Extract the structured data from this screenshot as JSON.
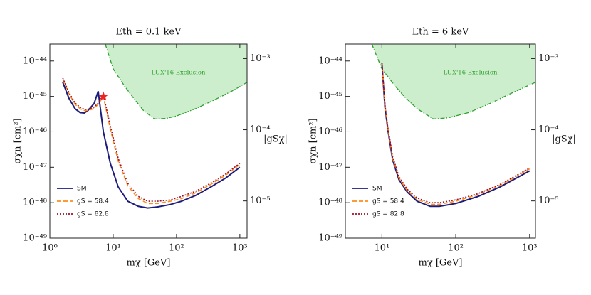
{
  "chart_data": [
    {
      "type": "line",
      "title": "Eth = 0.1 keV",
      "xlabel": "mχ [GeV]",
      "ylabel": "σχn [cm²]",
      "y2label": "|gSχ|",
      "xscale": "log",
      "yscale": "log",
      "y2scale": "log",
      "xlim": [
        1,
        1300
      ],
      "ylim": [
        1e-49,
        3e-44
      ],
      "y2lim": [
        3e-06,
        0.0016
      ],
      "xticks": [
        {
          "value": 1,
          "label": "10⁰"
        },
        {
          "value": 10,
          "label": "10¹"
        },
        {
          "value": 100,
          "label": "10²"
        },
        {
          "value": 1000,
          "label": "10³"
        }
      ],
      "yticks": [
        {
          "value": 1e-49,
          "label": "10⁻⁴⁹"
        },
        {
          "value": 1e-48,
          "label": "10⁻⁴⁸"
        },
        {
          "value": 1e-47,
          "label": "10⁻⁴⁷"
        },
        {
          "value": 1e-46,
          "label": "10⁻⁴⁶"
        },
        {
          "value": 1e-45,
          "label": "10⁻⁴⁵"
        },
        {
          "value": 1e-44,
          "label": "10⁻⁴⁴"
        }
      ],
      "y2ticks": [
        {
          "value": 1e-05,
          "label": "10⁻⁵"
        },
        {
          "value": 0.0001,
          "label": "10⁻⁴"
        },
        {
          "value": 0.001,
          "label": "10⁻³"
        }
      ],
      "legend": "lower left",
      "fill_region": {
        "label": "LUX'16 Exclusion",
        "color": "#cdeecd",
        "edge_color": "#2ca02c",
        "x": [
          7.5,
          10,
          15,
          20,
          30,
          45,
          70,
          100,
          200,
          400,
          800,
          1300
        ],
        "y": [
          3e-44,
          6e-45,
          2e-45,
          1e-45,
          4e-46,
          2.3e-46,
          2.4e-46,
          2.8e-46,
          4.5e-46,
          8e-46,
          1.5e-45,
          2.5e-45
        ]
      },
      "marker": {
        "x": 7,
        "y": 1e-45,
        "color": "#ee2222"
      },
      "x": [
        1.6,
        2,
        2.5,
        3,
        3.5,
        4,
        5,
        5.8,
        7,
        9,
        12,
        17,
        25,
        35,
        50,
        80,
        120,
        200,
        350,
        600,
        1000
      ],
      "series": [
        {
          "name": "SM",
          "color": "#1c1c7c",
          "style": "solid",
          "values": [
            2.5e-45,
            8.9e-46,
            4.5e-46,
            3.5e-46,
            3.4e-46,
            4e-46,
            6.3e-46,
            1.4e-45,
            1e-46,
            1.3e-47,
            2.8e-48,
            1.1e-48,
            7.9e-49,
            7.1e-49,
            7.6e-49,
            8.9e-49,
            1.1e-48,
            1.6e-48,
            2.8e-48,
            5e-48,
            1e-47
          ]
        },
        {
          "name": "gS = 58.4",
          "color": "#ff8c1a",
          "style": "dashed",
          "values": [
            3e-45,
            1.2e-45,
            6e-46,
            4.5e-46,
            4e-46,
            4e-46,
            4.5e-46,
            6e-46,
            1e-45,
            1.2e-46,
            1.5e-47,
            3e-48,
            1.3e-48,
            9.5e-49,
            9.5e-49,
            1.1e-48,
            1.3e-48,
            1.9e-48,
            3.3e-48,
            6e-48,
            1.2e-47
          ]
        },
        {
          "name": "gS = 82.8",
          "color": "#a0102a",
          "style": "dotted",
          "values": [
            3.3e-45,
            1.3e-45,
            6.5e-46,
            5e-46,
            4.3e-46,
            4.3e-46,
            5e-46,
            6.5e-46,
            1.1e-45,
            1.5e-46,
            1.8e-47,
            3.5e-48,
            1.5e-48,
            1.1e-48,
            1.1e-48,
            1.2e-48,
            1.5e-48,
            2.1e-48,
            3.6e-48,
            6.5e-48,
            1.3e-47
          ]
        }
      ]
    },
    {
      "type": "line",
      "title": "Eth = 6 keV",
      "xlabel": "mχ [GeV]",
      "ylabel": "σχn [cm²]",
      "y2label": "|gSχ|",
      "xscale": "log",
      "yscale": "log",
      "y2scale": "log",
      "xlim": [
        3.2,
        1200
      ],
      "ylim": [
        1e-49,
        3e-44
      ],
      "y2lim": [
        3e-06,
        0.0016
      ],
      "xticks": [
        {
          "value": 10,
          "label": "10¹"
        },
        {
          "value": 100,
          "label": "10²"
        },
        {
          "value": 1000,
          "label": "10³"
        }
      ],
      "yticks": [
        {
          "value": 1e-49,
          "label": "10⁻⁴⁹"
        },
        {
          "value": 1e-48,
          "label": "10⁻⁴⁸"
        },
        {
          "value": 1e-47,
          "label": "10⁻⁴⁷"
        },
        {
          "value": 1e-46,
          "label": "10⁻⁴⁶"
        },
        {
          "value": 1e-45,
          "label": "10⁻⁴⁵"
        },
        {
          "value": 1e-44,
          "label": "10⁻⁴⁴"
        }
      ],
      "y2ticks": [
        {
          "value": 1e-05,
          "label": "10⁻⁵"
        },
        {
          "value": 0.0001,
          "label": "10⁻⁴"
        },
        {
          "value": 0.001,
          "label": "10⁻³"
        }
      ],
      "legend": "lower left",
      "fill_region": {
        "label": "LUX'16 Exclusion",
        "color": "#cdeecd",
        "edge_color": "#2ca02c",
        "x": [
          7.3,
          10,
          15,
          20,
          30,
          50,
          80,
          150,
          300,
          600,
          1200
        ],
        "y": [
          3e-44,
          6e-45,
          2e-45,
          1e-45,
          4.5e-46,
          2.3e-46,
          2.5e-46,
          3.5e-46,
          6.5e-46,
          1.3e-45,
          2.5e-45
        ]
      },
      "x": [
        10,
        11,
        12,
        14,
        17,
        22,
        30,
        45,
        60,
        100,
        200,
        400,
        1000
      ],
      "series": [
        {
          "name": "SM",
          "color": "#1c1c7c",
          "style": "solid",
          "values": [
            9e-45,
            5e-46,
            1.2e-46,
            1.6e-47,
            4.5e-48,
            2e-48,
            1.1e-48,
            7.9e-49,
            7.9e-49,
            9.5e-49,
            1.5e-48,
            2.8e-48,
            7.9e-48
          ]
        },
        {
          "name": "gS = 58.4",
          "color": "#ff8c1a",
          "style": "dashed",
          "values": [
            9e-45,
            5.5e-46,
            1.3e-46,
            1.8e-47,
            5e-48,
            2.2e-48,
            1.25e-48,
            9e-49,
            9e-49,
            1.1e-48,
            1.7e-48,
            3.1e-48,
            9e-48
          ]
        },
        {
          "name": "gS = 82.8",
          "color": "#a0102a",
          "style": "dotted",
          "values": [
            9e-45,
            6e-46,
            1.4e-46,
            2e-47,
            5.5e-48,
            2.4e-48,
            1.35e-48,
            1e-48,
            1e-48,
            1.2e-48,
            1.8e-48,
            3.3e-48,
            9.5e-48
          ]
        }
      ]
    }
  ]
}
